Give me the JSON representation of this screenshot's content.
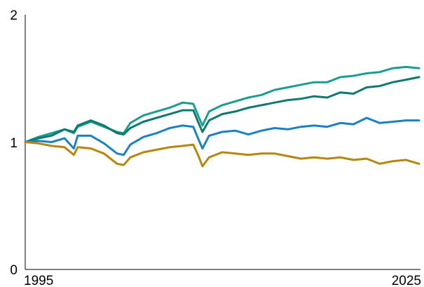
{
  "chart_data": {
    "type": "line",
    "title": "",
    "xlabel": "",
    "ylabel": "",
    "xlim": [
      1995,
      2025
    ],
    "ylim": [
      0,
      2
    ],
    "x_ticks": [
      "1995",
      "2025"
    ],
    "y_ticks": [
      "0",
      "1",
      "2"
    ],
    "grid": false,
    "legend": "none",
    "x": [
      1995,
      1996,
      1997,
      1998,
      1998.7,
      1999,
      2000,
      2001,
      2002,
      2002.5,
      2003,
      2004,
      2005,
      2006,
      2007,
      2007.8,
      2008.2,
      2008.5,
      2009,
      2010,
      2011,
      2012,
      2013,
      2014,
      2015,
      2016,
      2017,
      2018,
      2019,
      2020,
      2021,
      2022,
      2023,
      2024,
      2025
    ],
    "series": [
      {
        "color": "#1a9e8f",
        "values": [
          1.0,
          1.04,
          1.07,
          1.1,
          1.07,
          1.12,
          1.16,
          1.12,
          1.08,
          1.07,
          1.15,
          1.21,
          1.24,
          1.27,
          1.31,
          1.3,
          1.2,
          1.13,
          1.24,
          1.29,
          1.32,
          1.35,
          1.37,
          1.41,
          1.43,
          1.45,
          1.47,
          1.47,
          1.51,
          1.52,
          1.54,
          1.55,
          1.58,
          1.59,
          1.58
        ]
      },
      {
        "color": "#0f7a6e",
        "values": [
          1.0,
          1.03,
          1.05,
          1.1,
          1.08,
          1.13,
          1.17,
          1.13,
          1.07,
          1.06,
          1.11,
          1.16,
          1.19,
          1.22,
          1.25,
          1.25,
          1.15,
          1.08,
          1.17,
          1.22,
          1.24,
          1.27,
          1.29,
          1.31,
          1.33,
          1.34,
          1.36,
          1.35,
          1.39,
          1.38,
          1.43,
          1.44,
          1.47,
          1.49,
          1.51
        ]
      },
      {
        "color": "#1a82c4",
        "values": [
          1.0,
          1.01,
          1.0,
          1.03,
          0.95,
          1.05,
          1.05,
          0.99,
          0.91,
          0.9,
          0.98,
          1.04,
          1.07,
          1.11,
          1.13,
          1.12,
          1.02,
          0.95,
          1.05,
          1.08,
          1.09,
          1.06,
          1.09,
          1.11,
          1.1,
          1.12,
          1.13,
          1.12,
          1.15,
          1.14,
          1.19,
          1.15,
          1.16,
          1.17,
          1.17
        ]
      },
      {
        "color": "#b8860b",
        "values": [
          1.0,
          0.99,
          0.97,
          0.96,
          0.9,
          0.96,
          0.95,
          0.91,
          0.83,
          0.82,
          0.88,
          0.92,
          0.94,
          0.96,
          0.97,
          0.98,
          0.89,
          0.81,
          0.88,
          0.92,
          0.91,
          0.9,
          0.91,
          0.91,
          0.89,
          0.87,
          0.88,
          0.87,
          0.88,
          0.86,
          0.87,
          0.83,
          0.85,
          0.86,
          0.83
        ]
      }
    ]
  }
}
